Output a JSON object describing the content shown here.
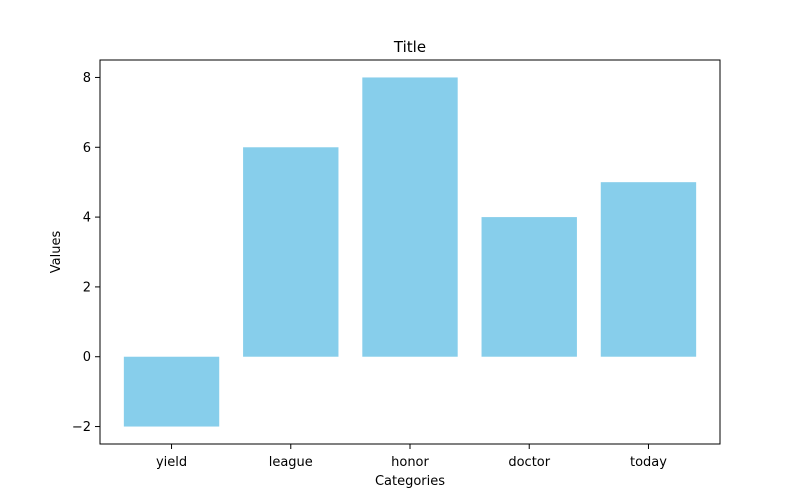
{
  "chart_data": {
    "type": "bar",
    "title": "Title",
    "xlabel": "Categories",
    "ylabel": "Values",
    "categories": [
      "yield",
      "league",
      "honor",
      "doctor",
      "today"
    ],
    "values": [
      -2,
      6,
      8,
      4,
      5
    ],
    "ylim": [
      -2.5,
      8.5
    ],
    "yticks": [
      -2,
      0,
      2,
      4,
      6,
      8
    ],
    "ytick_labels": [
      "−2",
      "0",
      "2",
      "4",
      "6",
      "8"
    ],
    "bar_color": "#87ceeb",
    "grid": false,
    "legend": "none"
  }
}
